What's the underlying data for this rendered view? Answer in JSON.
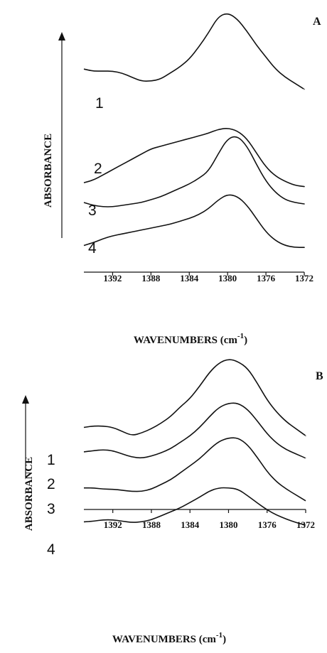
{
  "chart_data": [
    {
      "type": "line",
      "panel_label": "A",
      "ylabel": "ABSORBANCE",
      "xlabel": "WAVENUMBERS (cm",
      "xlabel_sup": "-1",
      "xlabel_end": ")",
      "x_ticks": [
        1392,
        1388,
        1384,
        1380,
        1376,
        1372
      ],
      "x_tick_labels": [
        "1392",
        "1388",
        "1384",
        "1380",
        "1376",
        "1372"
      ],
      "xlim": [
        1395,
        1372
      ],
      "ylim": [
        0,
        1
      ],
      "x_reversed": true,
      "series": [
        {
          "label": "1",
          "x": [
            1395,
            1394,
            1393,
            1392,
            1391,
            1390,
            1389,
            1388,
            1387,
            1386,
            1385,
            1384,
            1383,
            1382,
            1381,
            1380,
            1379,
            1378,
            1377,
            1376,
            1375,
            1374,
            1373,
            1372
          ],
          "y": [
            0.72,
            0.71,
            0.71,
            0.71,
            0.7,
            0.68,
            0.66,
            0.66,
            0.67,
            0.7,
            0.73,
            0.77,
            0.83,
            0.9,
            0.98,
            1.0,
            0.97,
            0.91,
            0.84,
            0.78,
            0.72,
            0.68,
            0.65,
            0.62
          ]
        },
        {
          "label": "2",
          "x": [
            1395,
            1394,
            1393,
            1392,
            1391,
            1390,
            1389,
            1388,
            1387,
            1386,
            1385,
            1384,
            1383,
            1382,
            1381,
            1380,
            1379,
            1378,
            1377,
            1376,
            1375,
            1374,
            1373,
            1372
          ],
          "y": [
            0.3,
            0.32,
            0.36,
            0.4,
            0.44,
            0.48,
            0.52,
            0.56,
            0.58,
            0.6,
            0.62,
            0.64,
            0.66,
            0.68,
            0.71,
            0.72,
            0.7,
            0.64,
            0.53,
            0.42,
            0.35,
            0.31,
            0.28,
            0.27
          ]
        },
        {
          "label": "3",
          "x": [
            1395,
            1394,
            1393,
            1392,
            1391,
            1390,
            1389,
            1388,
            1387,
            1386,
            1385,
            1384,
            1383,
            1382,
            1381,
            1380,
            1379,
            1378,
            1377,
            1376,
            1375,
            1374,
            1373,
            1372
          ],
          "y": [
            0.23,
            0.21,
            0.2,
            0.2,
            0.21,
            0.22,
            0.23,
            0.25,
            0.27,
            0.3,
            0.33,
            0.36,
            0.4,
            0.45,
            0.57,
            0.68,
            0.7,
            0.63,
            0.5,
            0.38,
            0.3,
            0.25,
            0.23,
            0.22
          ]
        },
        {
          "label": "4",
          "x": [
            1395,
            1394,
            1393,
            1392,
            1391,
            1390,
            1389,
            1388,
            1387,
            1386,
            1385,
            1384,
            1383,
            1382,
            1381,
            1380,
            1379,
            1378,
            1377,
            1376,
            1375,
            1374,
            1373,
            1372
          ],
          "y": [
            0.07,
            0.1,
            0.14,
            0.17,
            0.19,
            0.21,
            0.23,
            0.25,
            0.27,
            0.29,
            0.32,
            0.35,
            0.39,
            0.45,
            0.54,
            0.6,
            0.58,
            0.49,
            0.35,
            0.21,
            0.12,
            0.07,
            0.05,
            0.05
          ]
        }
      ]
    },
    {
      "type": "line",
      "panel_label": "B",
      "ylabel": "ABSORBANCE",
      "xlabel": "WAVENUMBERS (cm",
      "xlabel_sup": "-1",
      "xlabel_end": ")",
      "x_ticks": [
        1392,
        1388,
        1384,
        1380,
        1376,
        1372
      ],
      "x_tick_labels": [
        "1392",
        "1388",
        "1384",
        "1380",
        "1376",
        "1372"
      ],
      "xlim": [
        1395,
        1372
      ],
      "ylim": [
        0,
        1
      ],
      "x_reversed": true,
      "series": [
        {
          "label": "1",
          "x": [
            1395,
            1394,
            1393,
            1392,
            1391,
            1390,
            1389,
            1388,
            1387,
            1386,
            1385,
            1384,
            1383,
            1382,
            1381,
            1380,
            1379,
            1378,
            1377,
            1376,
            1375,
            1374,
            1373,
            1372
          ],
          "y": [
            0.5,
            0.51,
            0.51,
            0.5,
            0.47,
            0.44,
            0.46,
            0.49,
            0.53,
            0.58,
            0.65,
            0.71,
            0.8,
            0.9,
            0.97,
            1.0,
            0.98,
            0.93,
            0.82,
            0.7,
            0.61,
            0.54,
            0.49,
            0.44
          ]
        },
        {
          "label": "2",
          "x": [
            1395,
            1394,
            1393,
            1392,
            1391,
            1390,
            1389,
            1388,
            1387,
            1386,
            1385,
            1384,
            1383,
            1382,
            1381,
            1380,
            1379,
            1378,
            1377,
            1376,
            1375,
            1374,
            1373,
            1372
          ],
          "y": [
            0.37,
            0.38,
            0.39,
            0.38,
            0.35,
            0.32,
            0.31,
            0.33,
            0.36,
            0.4,
            0.46,
            0.52,
            0.6,
            0.7,
            0.79,
            0.83,
            0.83,
            0.77,
            0.66,
            0.54,
            0.45,
            0.39,
            0.35,
            0.31
          ]
        },
        {
          "label": "3",
          "x": [
            1395,
            1394,
            1393,
            1392,
            1391,
            1390,
            1389,
            1388,
            1387,
            1386,
            1385,
            1384,
            1383,
            1382,
            1381,
            1380,
            1379,
            1378,
            1377,
            1376,
            1375,
            1374,
            1373,
            1372
          ],
          "y": [
            0.27,
            0.27,
            0.26,
            0.26,
            0.25,
            0.24,
            0.24,
            0.26,
            0.3,
            0.34,
            0.4,
            0.46,
            0.52,
            0.6,
            0.67,
            0.7,
            0.7,
            0.64,
            0.53,
            0.41,
            0.32,
            0.26,
            0.21,
            0.16
          ]
        },
        {
          "label": "4",
          "x": [
            1395,
            1394,
            1393,
            1392,
            1391,
            1390,
            1389,
            1388,
            1387,
            1386,
            1385,
            1384,
            1383,
            1382,
            1381,
            1380,
            1379,
            1378,
            1377,
            1376,
            1375,
            1374,
            1373,
            1372
          ],
          "y": [
            0.07,
            0.08,
            0.1,
            0.1,
            0.08,
            0.06,
            0.07,
            0.1,
            0.16,
            0.22,
            0.28,
            0.36,
            0.44,
            0.53,
            0.58,
            0.58,
            0.56,
            0.46,
            0.35,
            0.25,
            0.17,
            0.11,
            0.06,
            0.02
          ]
        }
      ]
    }
  ]
}
